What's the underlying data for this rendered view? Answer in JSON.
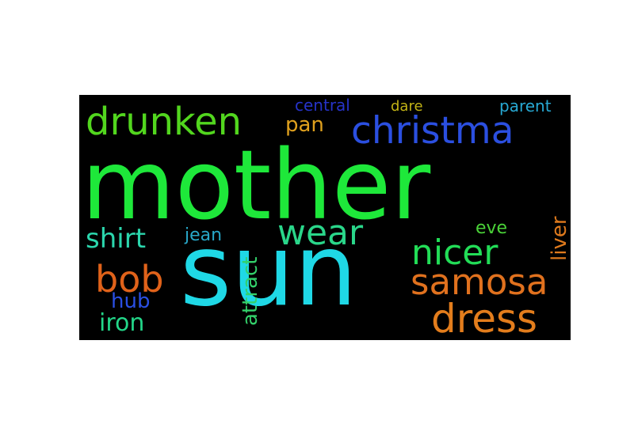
{
  "wordcloud": {
    "background": "#000000",
    "words": [
      {
        "text": "mother",
        "color": "#1ee83a"
      },
      {
        "text": "sun",
        "color": "#1fd8e6"
      },
      {
        "text": "christma",
        "color": "#2b4fe0"
      },
      {
        "text": "drunken",
        "color": "#52d61e"
      },
      {
        "text": "samosa",
        "color": "#e0711e"
      },
      {
        "text": "dress",
        "color": "#e37d1c"
      },
      {
        "text": "nicer",
        "color": "#22dd57"
      },
      {
        "text": "wear",
        "color": "#2ad68a"
      },
      {
        "text": "shirt",
        "color": "#2bd6ad"
      },
      {
        "text": "bob",
        "color": "#e0621a"
      },
      {
        "text": "pan",
        "color": "#e0a11e"
      },
      {
        "text": "central",
        "color": "#2633c8"
      },
      {
        "text": "dare",
        "color": "#c2b315"
      },
      {
        "text": "parent",
        "color": "#27a9d4"
      },
      {
        "text": "liver",
        "color": "#df7a1d"
      },
      {
        "text": "eve",
        "color": "#4ad238"
      },
      {
        "text": "jean",
        "color": "#28a7c8"
      },
      {
        "text": "attract",
        "color": "#33d06a"
      },
      {
        "text": "hub",
        "color": "#2a4fe3"
      },
      {
        "text": "iron",
        "color": "#23d689"
      }
    ]
  }
}
